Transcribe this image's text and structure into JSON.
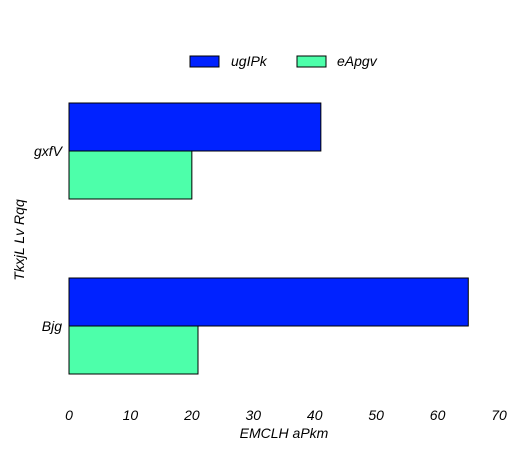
{
  "chart_data": {
    "type": "bar",
    "orientation": "horizontal",
    "categories": [
      "gxfV",
      "Bjg"
    ],
    "series": [
      {
        "name": "ugIPk",
        "color": "#0022ff",
        "values": [
          41,
          65
        ]
      },
      {
        "name": "eApgv",
        "color": "#4dffaa",
        "values": [
          20,
          21
        ]
      }
    ],
    "title": "",
    "xlabel": "EMCLH aPkm",
    "ylabel": "TkxjL Lv Rqq",
    "xlim": [
      0,
      70
    ],
    "xticks": [
      0,
      10,
      20,
      30,
      40,
      50,
      60,
      70
    ],
    "grid": false,
    "legend_position": "top-center",
    "bar_edge_color": "#000000"
  }
}
